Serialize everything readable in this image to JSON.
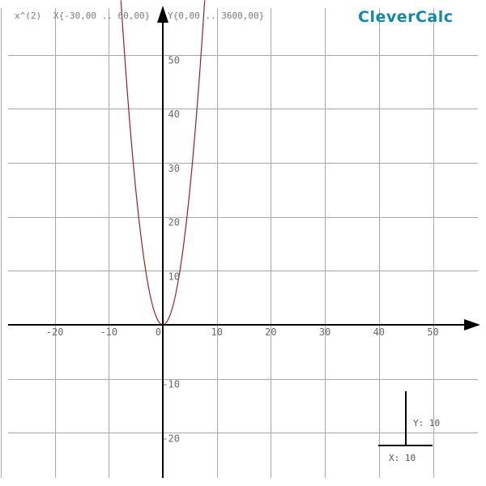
{
  "header": {
    "function": "x^(2)",
    "x_range": "X{-30,00 .. 60,00}",
    "y_range": "Y{0,00 .. 3600,00}",
    "brand": "CleverCalc"
  },
  "colors": {
    "brand": "#1589a6",
    "curve": "#9b1c2a",
    "grid": "#a8a8a8",
    "axis": "#000000"
  },
  "chart_data": {
    "type": "line",
    "function": "x^2",
    "xlim": [
      -30,
      60
    ],
    "ylim": [
      -28,
      58
    ],
    "x_ticks": [
      "-20",
      "-10",
      "0",
      "10",
      "20",
      "30",
      "40",
      "50"
    ],
    "y_ticks": [
      "50",
      "40",
      "30",
      "20",
      "10",
      "-10",
      "-20"
    ],
    "grid": true
  },
  "scale_indicator": {
    "x_label": "X: 10",
    "y_label": "Y: 10"
  }
}
